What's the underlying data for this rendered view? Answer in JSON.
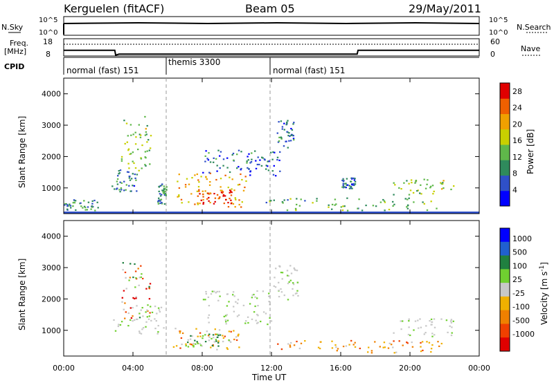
{
  "header": {
    "station": "Kerguelen (fitACF)",
    "beam": "Beam 05",
    "date": "29/May/2011"
  },
  "status_panel": {
    "nsky_label": "N.Sky",
    "nsearch_label": "N.Search",
    "freq_label": "Freq.",
    "freq_unit": "[MHz]",
    "nave_label": "Nave",
    "cpid_label": "CPID",
    "noise_ticks": [
      "10^5",
      "10^0"
    ],
    "freq_ticks": [
      "18",
      "8"
    ],
    "nave_ticks": [
      "60",
      "0"
    ],
    "cpid_segments": [
      {
        "label": "normal (fast) 151",
        "start_h": 0,
        "end_h": 6
      },
      {
        "label": "themis 3300",
        "start_h": 6,
        "end_h": 12
      },
      {
        "label": "normal (fast) 151",
        "start_h": 12,
        "end_h": 24
      }
    ],
    "freq_trace": [
      {
        "t": 0,
        "f": 11.3
      },
      {
        "t": 2.95,
        "f": 11.3
      },
      {
        "t": 3.0,
        "f": 8.5
      },
      {
        "t": 3.2,
        "f": 9.1
      },
      {
        "t": 16.95,
        "f": 9.1
      },
      {
        "t": 17.0,
        "f": 11.3
      },
      {
        "t": 24,
        "f": 11.3
      }
    ]
  },
  "chart_data": [
    {
      "type": "heatmap",
      "panel": "power",
      "ylabel": "Slant Range [km]",
      "ylim": [
        180,
        4500
      ],
      "yticks": [
        1000,
        2000,
        3000,
        4000
      ],
      "xlim": [
        0,
        24
      ],
      "colorbar": {
        "label": "Power [dB]",
        "range": [
          0,
          30
        ],
        "ticks": [
          4,
          8,
          12,
          16,
          20,
          24,
          28
        ],
        "colors": [
          "#0000ff",
          "#2f50c8",
          "#2f8a5c",
          "#5fb84a",
          "#c8d000",
          "#f0a000",
          "#f06000",
          "#e00000"
        ]
      },
      "regions": [
        {
          "t0": 3.3,
          "t1": 5.0,
          "r0": 1400,
          "r1": 3300,
          "level": 14
        },
        {
          "t0": 2.7,
          "t1": 4.2,
          "r0": 900,
          "r1": 1600,
          "level": 8
        },
        {
          "t0": 5.4,
          "t1": 5.9,
          "r0": 500,
          "r1": 1200,
          "level": 10
        },
        {
          "t0": 6.5,
          "t1": 10.5,
          "r0": 400,
          "r1": 1500,
          "level": 20
        },
        {
          "t0": 7.5,
          "t1": 9.8,
          "r0": 500,
          "r1": 1000,
          "level": 26
        },
        {
          "t0": 8.0,
          "t1": 11.0,
          "r0": 1500,
          "r1": 2300,
          "level": 8
        },
        {
          "t0": 10.5,
          "t1": 12.5,
          "r0": 1400,
          "r1": 2200,
          "level": 6
        },
        {
          "t0": 12.3,
          "t1": 13.3,
          "r0": 2300,
          "r1": 3200,
          "level": 8
        },
        {
          "t0": 0.0,
          "t1": 2.0,
          "r0": 300,
          "r1": 650,
          "level": 10
        },
        {
          "t0": 11.5,
          "t1": 21.5,
          "r0": 300,
          "r1": 700,
          "level": 12
        },
        {
          "t0": 19.0,
          "t1": 22.5,
          "r0": 800,
          "r1": 1300,
          "level": 14
        },
        {
          "t0": 16.0,
          "t1": 16.8,
          "r0": 1000,
          "r1": 1350,
          "level": 8
        }
      ]
    },
    {
      "type": "heatmap",
      "panel": "velocity",
      "ylabel": "Slant Range [km]",
      "xlabel": "Time UT",
      "ylim": [
        180,
        4500
      ],
      "yticks": [
        1000,
        2000,
        3000,
        4000
      ],
      "xlim": [
        0,
        24
      ],
      "xticks": [
        "00:00",
        "04:00",
        "08:00",
        "12:00",
        "16:00",
        "20:00",
        "00:00"
      ],
      "colorbar": {
        "label": "Velocity [m s^-1]",
        "ticks": [
          "1000",
          "500",
          "100",
          "25",
          "-25",
          "-100",
          "-500",
          "-1000"
        ],
        "colors": [
          "#0000ff",
          "#2060d0",
          "#208040",
          "#70d030",
          "#c8c8c8",
          "#f0b000",
          "#f08000",
          "#f04000",
          "#e00000"
        ]
      },
      "regions": [
        {
          "t0": 3.3,
          "t1": 5.0,
          "r0": 1400,
          "r1": 3200,
          "band": "mixed"
        },
        {
          "t0": 2.8,
          "t1": 5.8,
          "r0": 900,
          "r1": 1800,
          "band": "ground"
        },
        {
          "t0": 6.3,
          "t1": 10.5,
          "r0": 400,
          "r1": 1100,
          "band": "negative"
        },
        {
          "t0": 7.0,
          "t1": 9.5,
          "r0": 500,
          "r1": 900,
          "band": "positive"
        },
        {
          "t0": 8.0,
          "t1": 12.0,
          "r0": 1200,
          "r1": 2300,
          "band": "ground"
        },
        {
          "t0": 12.0,
          "t1": 13.5,
          "r0": 2000,
          "r1": 3100,
          "band": "ground"
        },
        {
          "t0": 12.0,
          "t1": 22.0,
          "r0": 300,
          "r1": 700,
          "band": "negative"
        },
        {
          "t0": 19.0,
          "t1": 22.5,
          "r0": 800,
          "r1": 1400,
          "band": "ground"
        }
      ]
    }
  ]
}
